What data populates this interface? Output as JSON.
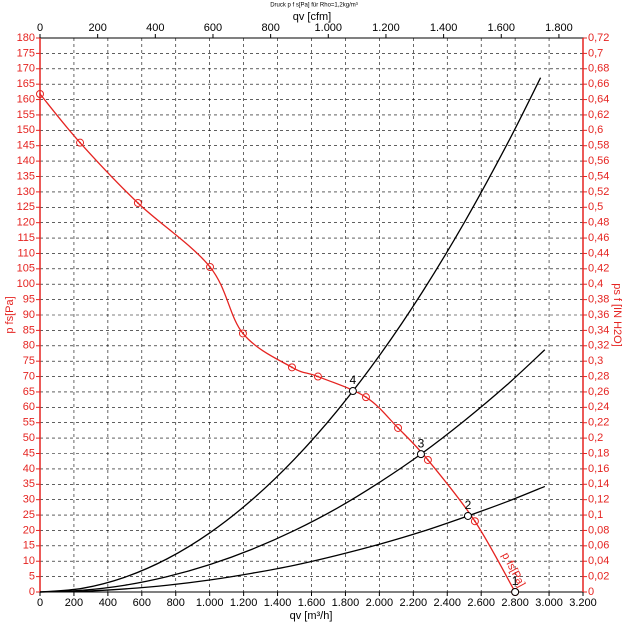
{
  "chart_data": {
    "type": "line",
    "title": "Druck p f s[Pa] für Rho=1,2kg/m³",
    "x_label": "qv [m³/h]",
    "x2_label": "qv [cfm]",
    "y_label": "p  fs[Pa]",
    "y2_label": "ps f [IN H2O]",
    "grid": true,
    "xlim": [
      0,
      3200
    ],
    "xticks": [
      0,
      200,
      400,
      600,
      800,
      {
        "value": 1000,
        "label": "1.000"
      },
      {
        "value": 1200,
        "label": "1.200"
      },
      {
        "value": 1400,
        "label": "1.400"
      },
      {
        "value": 1600,
        "label": "1.600"
      },
      {
        "value": 1800,
        "label": "1.800"
      },
      {
        "value": 2000,
        "label": "2.000"
      },
      {
        "value": 2200,
        "label": "2.200"
      },
      {
        "value": 2400,
        "label": "2.400"
      },
      {
        "value": 2600,
        "label": "2.600"
      },
      {
        "value": 2800,
        "label": "2.800"
      },
      {
        "value": 3000,
        "label": "3.000"
      },
      {
        "value": 3200,
        "label": "3.200"
      }
    ],
    "x2lim": [
      0,
      1883.5
    ],
    "x2ticks": [
      0,
      200,
      400,
      600,
      800,
      {
        "value": 1000,
        "label": "1.000"
      },
      {
        "value": 1200,
        "label": "1.200"
      },
      {
        "value": 1400,
        "label": "1.400"
      },
      {
        "value": 1600,
        "label": "1.600"
      },
      {
        "value": 1800,
        "label": "1.800"
      }
    ],
    "ylim": [
      0,
      180
    ],
    "yticks": [
      0,
      5,
      10,
      15,
      20,
      25,
      30,
      35,
      40,
      45,
      50,
      55,
      60,
      65,
      70,
      75,
      80,
      85,
      90,
      95,
      100,
      105,
      110,
      115,
      120,
      125,
      130,
      135,
      140,
      145,
      150,
      155,
      160,
      165,
      170,
      175,
      180
    ],
    "y2lim": [
      0,
      0.72
    ],
    "y2ticks": [
      0,
      {
        "value": 0.02,
        "label": "0,02"
      },
      {
        "value": 0.04,
        "label": "0,04"
      },
      {
        "value": 0.06,
        "label": "0,06"
      },
      {
        "value": 0.08,
        "label": "0,08"
      },
      {
        "value": 0.1,
        "label": "0,1"
      },
      {
        "value": 0.12,
        "label": "0,12"
      },
      {
        "value": 0.14,
        "label": "0,14"
      },
      {
        "value": 0.16,
        "label": "0,16"
      },
      {
        "value": 0.18,
        "label": "0,18"
      },
      {
        "value": 0.2,
        "label": "0,2"
      },
      {
        "value": 0.22,
        "label": "0,22"
      },
      {
        "value": 0.24,
        "label": "0,24"
      },
      {
        "value": 0.26,
        "label": "0,26"
      },
      {
        "value": 0.28,
        "label": "0,28"
      },
      {
        "value": 0.3,
        "label": "0,3"
      },
      {
        "value": 0.32,
        "label": "0,32"
      },
      {
        "value": 0.34,
        "label": "0,34"
      },
      {
        "value": 0.36,
        "label": "0,36"
      },
      {
        "value": 0.38,
        "label": "0,38"
      },
      {
        "value": 0.4,
        "label": "0,4"
      },
      {
        "value": 0.42,
        "label": "0,42"
      },
      {
        "value": 0.44,
        "label": "0,44"
      },
      {
        "value": 0.46,
        "label": "0,46"
      },
      {
        "value": 0.48,
        "label": "0,48"
      },
      {
        "value": 0.5,
        "label": "0,5"
      },
      {
        "value": 0.52,
        "label": "0,52"
      },
      {
        "value": 0.54,
        "label": "0,54"
      },
      {
        "value": 0.56,
        "label": "0,56"
      },
      {
        "value": 0.58,
        "label": "0,58"
      },
      {
        "value": 0.6,
        "label": "0,6"
      },
      {
        "value": 0.62,
        "label": "0,62"
      },
      {
        "value": 0.64,
        "label": "0,64"
      },
      {
        "value": 0.66,
        "label": "0,66"
      },
      {
        "value": 0.68,
        "label": "0,68"
      },
      {
        "value": 0.7,
        "label": "0,7"
      },
      {
        "value": 0.72,
        "label": "0,72"
      }
    ],
    "series": [
      {
        "name": "p fs[Pa]",
        "color": "#e52421",
        "markers": true,
        "x": [
          0,
          236,
          577,
          1002,
          1196,
          1485,
          1638,
          1921,
          2110,
          2286,
          2563,
          2800
        ],
        "values": [
          161.8,
          146,
          126.4,
          105.6,
          84,
          73,
          70,
          63.3,
          53.3,
          42.9,
          23,
          0
        ]
      },
      {
        "color": "#000000",
        "x": [
          0,
          250,
          500,
          750,
          1000,
          1250,
          1500,
          1750,
          2000,
          2250,
          2500,
          2750,
          2950
        ],
        "values": [
          0,
          1.2,
          4.8,
          10.8,
          19.2,
          30,
          43.2,
          58.8,
          76.8,
          97.2,
          120,
          145.2,
          167.1
        ]
      },
      {
        "color": "#000000",
        "x": [
          0,
          250,
          500,
          750,
          1000,
          1250,
          1500,
          1750,
          2000,
          2250,
          2500,
          2750,
          2975
        ],
        "values": [
          0,
          0.56,
          2.2,
          5,
          8.9,
          13.9,
          20,
          27.2,
          35.6,
          45,
          55.6,
          67.2,
          78.7
        ]
      },
      {
        "color": "#000000",
        "x": [
          0,
          250,
          500,
          750,
          1000,
          1250,
          1500,
          1750,
          2000,
          2250,
          2500,
          2750,
          2975
        ],
        "values": [
          0,
          0.24,
          1,
          2.2,
          3.9,
          6.1,
          8.7,
          11.9,
          15.5,
          19.6,
          24.3,
          29.3,
          34.3
        ]
      }
    ],
    "points": {
      "labels": [
        "1",
        "2",
        "3",
        "4"
      ],
      "x": [
        2800,
        2522,
        2245,
        1844
      ],
      "values": [
        0,
        24.7,
        44.8,
        65.3
      ]
    }
  }
}
